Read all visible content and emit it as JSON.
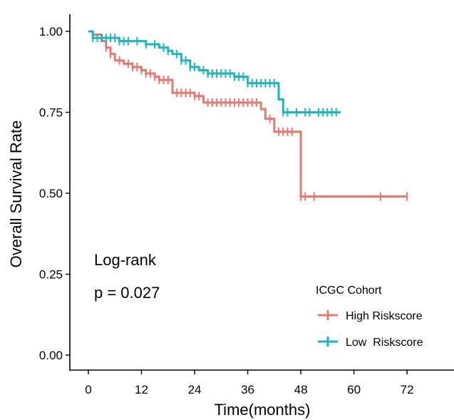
{
  "chart_data": {
    "type": "line",
    "subtype": "kaplan-meier",
    "title": "",
    "xlabel": "Time(months)",
    "ylabel": "Overall Survival Rate",
    "xlim": [
      -4,
      80
    ],
    "ylim": [
      0,
      1.0
    ],
    "x_ticks": [
      0,
      12,
      24,
      36,
      48,
      60,
      72
    ],
    "x_tick_labels": [
      "0",
      "12",
      "24",
      "36",
      "48",
      "60",
      "72"
    ],
    "y_ticks": [
      0,
      0.25,
      0.5,
      0.75,
      1.0
    ],
    "y_tick_labels": [
      "0.00",
      "0.25",
      "0.50",
      "0.75",
      "1.00"
    ],
    "grid": false,
    "legend": {
      "title": "ICGC Cohort",
      "position": "bottom-right"
    },
    "annotations": {
      "line1": "Log-rank",
      "line2": "p = 0.027"
    },
    "series": [
      {
        "name": "High Riskscore",
        "color": "#E8776F",
        "steps": [
          [
            0,
            1.0
          ],
          [
            1,
            0.99
          ],
          [
            3,
            0.97
          ],
          [
            4,
            0.95
          ],
          [
            5,
            0.93
          ],
          [
            6,
            0.91
          ],
          [
            8,
            0.9
          ],
          [
            10,
            0.89
          ],
          [
            12,
            0.88
          ],
          [
            13,
            0.87
          ],
          [
            15,
            0.86
          ],
          [
            16,
            0.85
          ],
          [
            19,
            0.81
          ],
          [
            24,
            0.8
          ],
          [
            26,
            0.78
          ],
          [
            39,
            0.76
          ],
          [
            40,
            0.73
          ],
          [
            42,
            0.69
          ],
          [
            48,
            0.49
          ],
          [
            72,
            0.49
          ]
        ],
        "censored": [
          4,
          5,
          7,
          9,
          10,
          11,
          12,
          13,
          14,
          15,
          16,
          17,
          18,
          20,
          21,
          22,
          23,
          24,
          25,
          27,
          28,
          29,
          30,
          31,
          32,
          33,
          34,
          35,
          36,
          37,
          38,
          41,
          43,
          44,
          45,
          46,
          48,
          49,
          51,
          66,
          72
        ]
      },
      {
        "name": "Low  Riskscore",
        "color": "#1CB7BE",
        "steps": [
          [
            0,
            1.0
          ],
          [
            1,
            0.98
          ],
          [
            7,
            0.97
          ],
          [
            13,
            0.96
          ],
          [
            16,
            0.95
          ],
          [
            18,
            0.94
          ],
          [
            19,
            0.93
          ],
          [
            21,
            0.91
          ],
          [
            23,
            0.89
          ],
          [
            25,
            0.88
          ],
          [
            27,
            0.87
          ],
          [
            33,
            0.86
          ],
          [
            36,
            0.84
          ],
          [
            43,
            0.79
          ],
          [
            44,
            0.75
          ],
          [
            57,
            0.75
          ]
        ],
        "censored": [
          1,
          2,
          3,
          4,
          5,
          6,
          7,
          8,
          9,
          11,
          13,
          15,
          17,
          18,
          20,
          21,
          22,
          23,
          24,
          26,
          27,
          28,
          29,
          30,
          31,
          32,
          33,
          34,
          35,
          36,
          37,
          38,
          39,
          40,
          41,
          42,
          44,
          45,
          47,
          49,
          50,
          52,
          53,
          54,
          55,
          56
        ]
      }
    ]
  }
}
